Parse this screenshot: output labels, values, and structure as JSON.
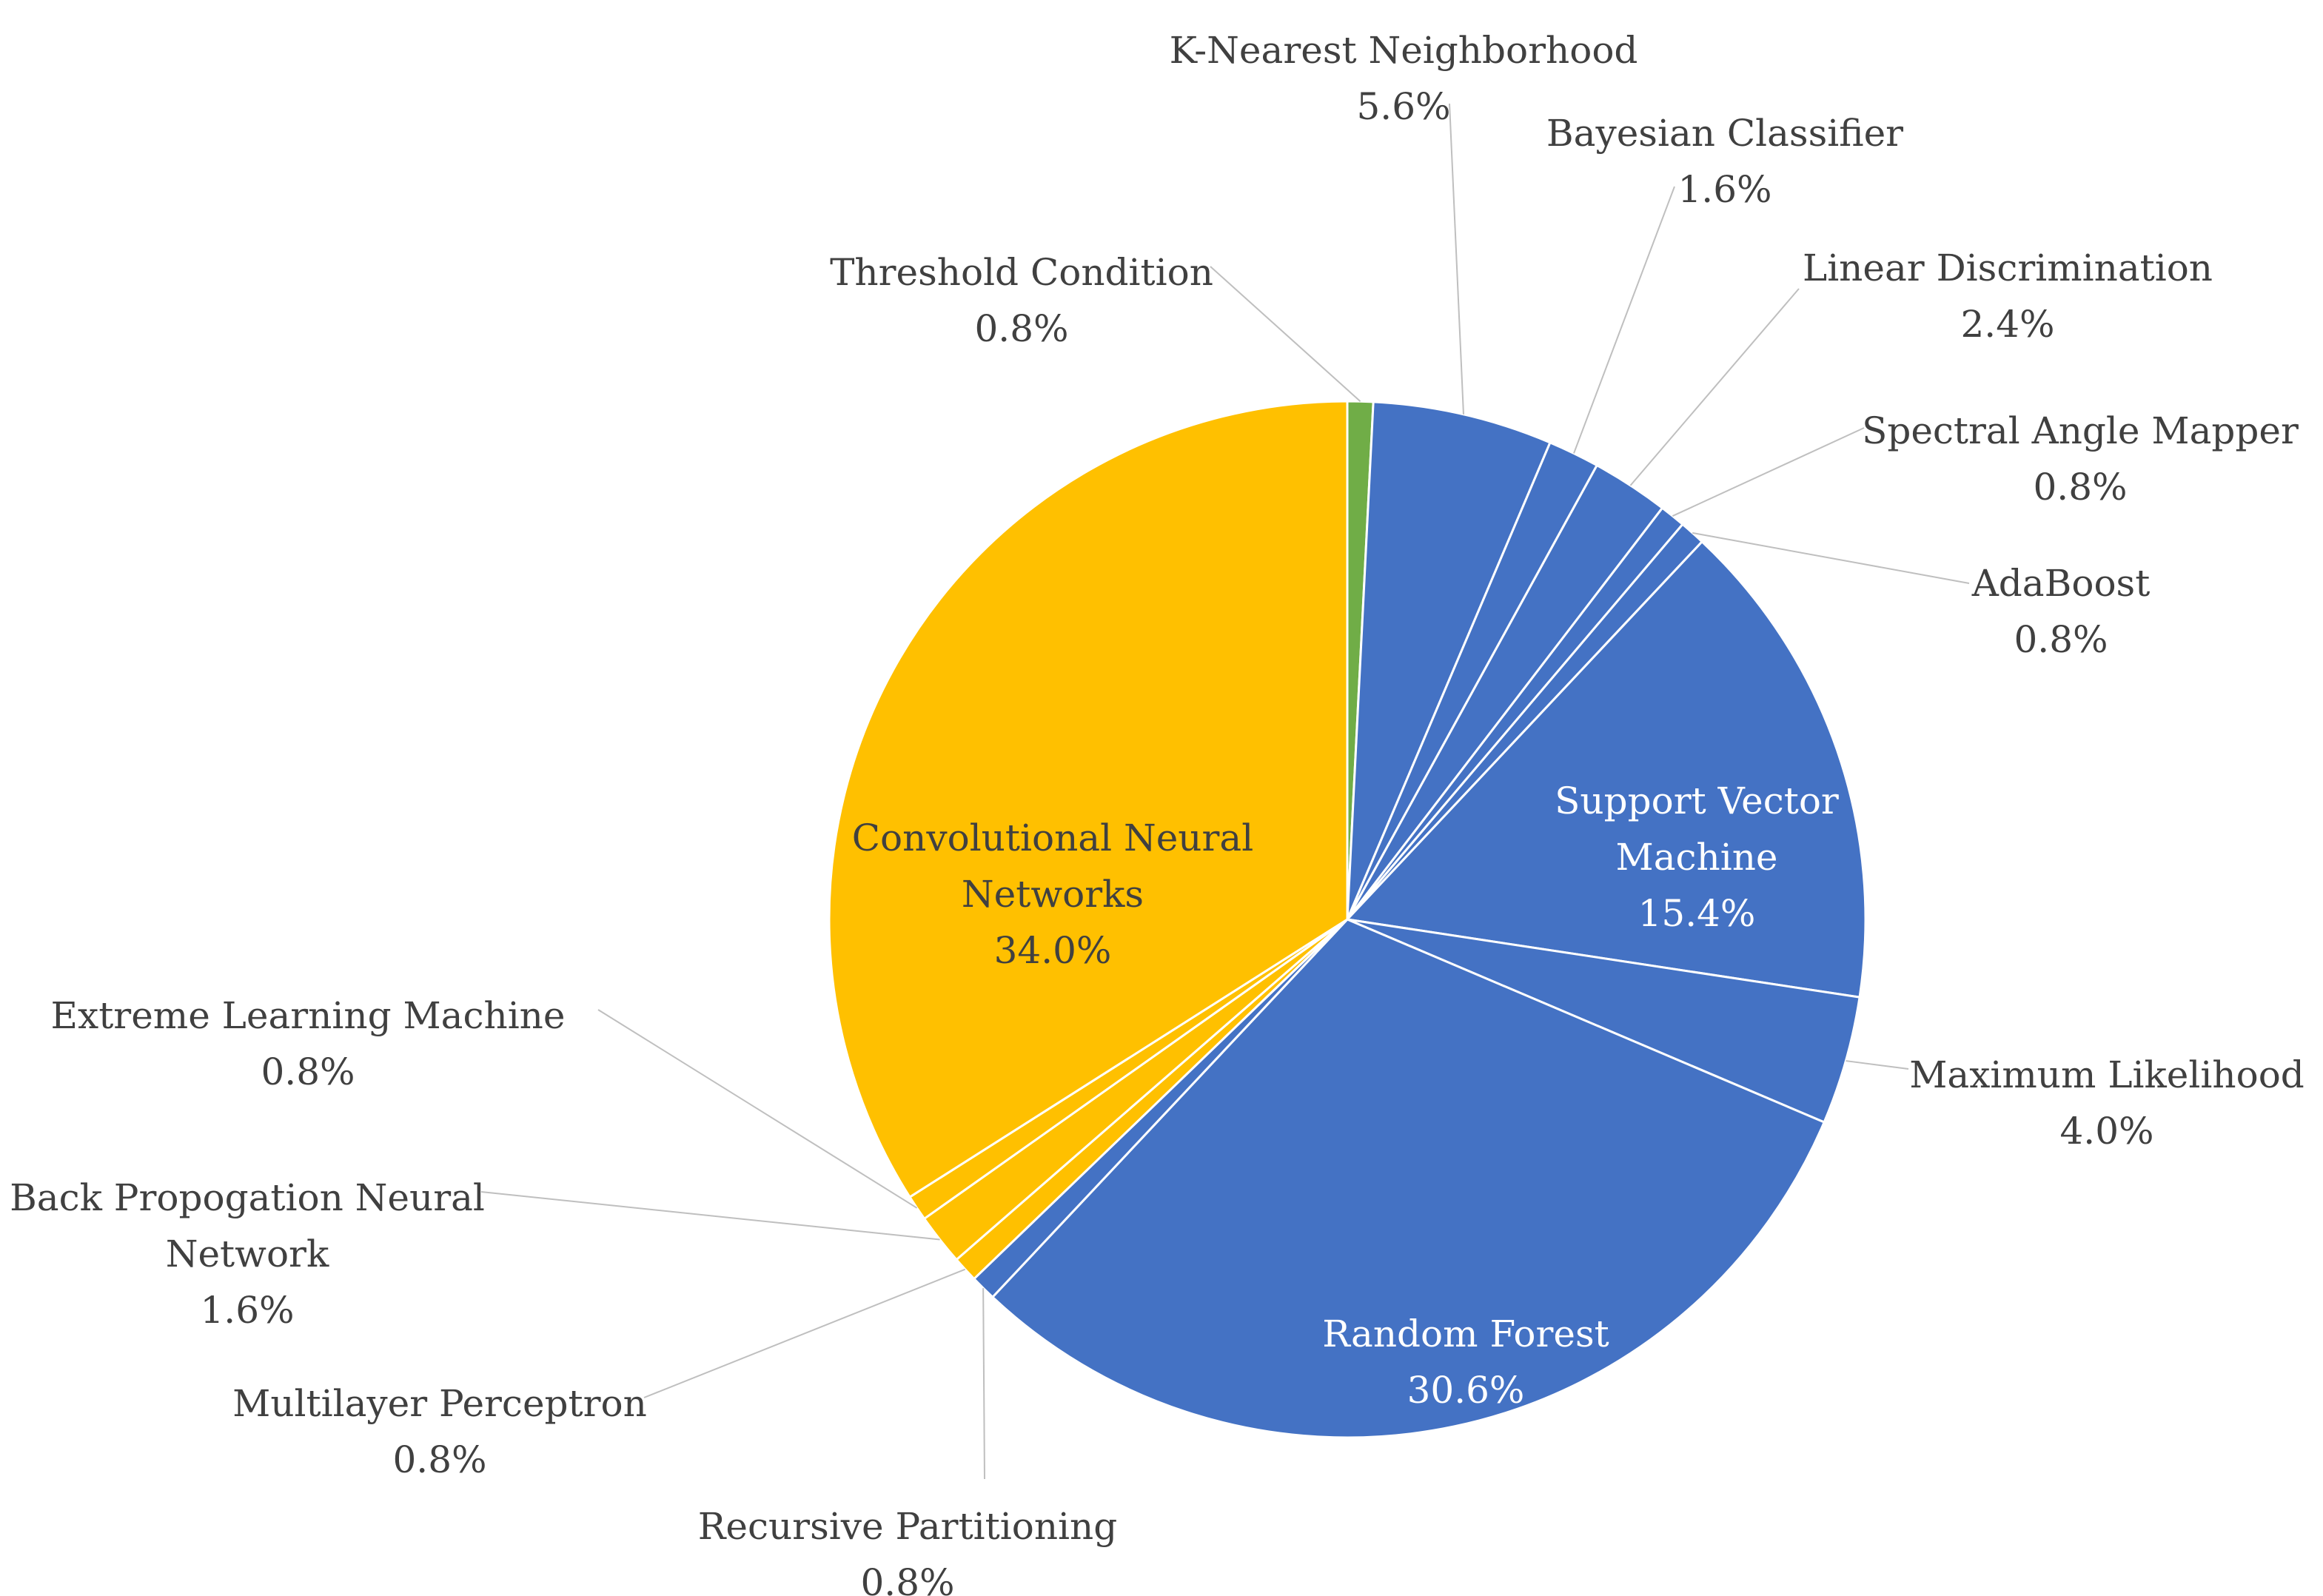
{
  "chart_data": {
    "type": "pie",
    "title": "",
    "slices": [
      {
        "label": "Threshold Condition",
        "value": 0.8,
        "display": "0.8%",
        "color": "#70ad47"
      },
      {
        "label": "K-Nearest Neighborhood",
        "value": 5.6,
        "display": "5.6%",
        "color": "#4472c4"
      },
      {
        "label": "Bayesian Classifier",
        "value": 1.6,
        "display": "1.6%",
        "color": "#4472c4"
      },
      {
        "label": "Linear Discrimination",
        "value": 2.4,
        "display": "2.4%",
        "color": "#4472c4"
      },
      {
        "label": "Spectral Angle Mapper",
        "value": 0.8,
        "display": "0.8%",
        "color": "#4472c4"
      },
      {
        "label": "AdaBoost",
        "value": 0.8,
        "display": "0.8%",
        "color": "#4472c4"
      },
      {
        "label": "Support Vector Machine",
        "value": 15.4,
        "display": "15.4%",
        "color": "#4472c4"
      },
      {
        "label": "Maximum Likelihood",
        "value": 4.0,
        "display": "4.0%",
        "color": "#4472c4"
      },
      {
        "label": "Random Forest",
        "value": 30.6,
        "display": "30.6%",
        "color": "#4472c4"
      },
      {
        "label": "Recursive Partitioning",
        "value": 0.8,
        "display": "0.8%",
        "color": "#4472c4"
      },
      {
        "label": "Multilayer Perceptron",
        "value": 0.8,
        "display": "0.8%",
        "color": "#ffc000"
      },
      {
        "label": "Back Propogation Neural Network",
        "value": 1.6,
        "display": "1.6%",
        "color": "#ffc000"
      },
      {
        "label": "Extreme Learning Machine",
        "value": 0.8,
        "display": "0.8%",
        "color": "#ffc000"
      },
      {
        "label": "Convolutional Neural Networks",
        "value": 34.0,
        "display": "34.0%",
        "color": "#ffc000"
      }
    ],
    "start_angle_deg": 0,
    "direction": "clockwise",
    "legend": "none",
    "label_style": "category name and percentage, leader lines for outside labels"
  }
}
